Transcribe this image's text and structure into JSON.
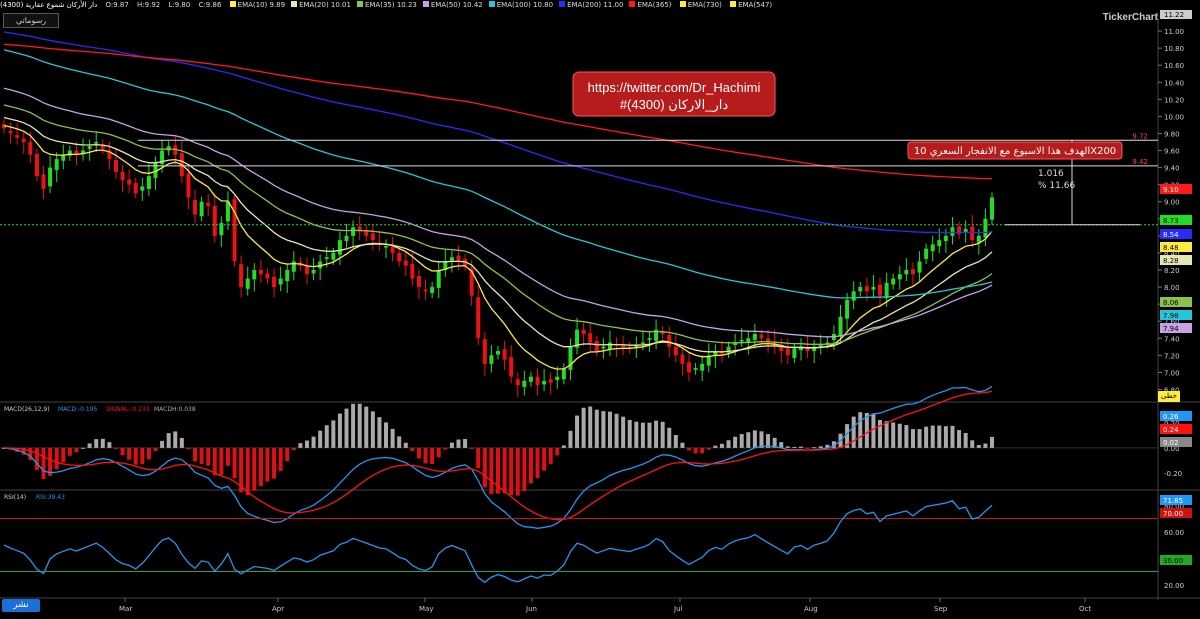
{
  "header": {
    "symbol_title": "دار الأركان  شموع  عقارية (4300)",
    "ohlc": [
      "O:9.87",
      "H:9.92",
      "L:9.80",
      "C:9.86"
    ],
    "ema_items": [
      {
        "label": "EMA(10)",
        "value": "9.89",
        "color": "#ffeb3b"
      },
      {
        "label": "EMA(20)",
        "value": "10.01",
        "color": "#e6e6b0"
      },
      {
        "label": "EMA(35)",
        "value": "10.23",
        "color": "#8bc34a"
      },
      {
        "label": "EMA(50)",
        "value": "10.42",
        "color": "#c9a0e8"
      },
      {
        "label": "EMA(100)",
        "value": "10.80",
        "color": "#26c6da"
      },
      {
        "label": "EMA(200)",
        "value": "11.00",
        "color": "#2a2aff"
      },
      {
        "label": "EMA(365)",
        "value": "",
        "color": "#ff1a1a"
      },
      {
        "label": "EMA(730)",
        "value": "",
        "color": "#ffeb3b"
      },
      {
        "label": "EMA(547)",
        "value": "",
        "color": "#ffeb3b"
      }
    ],
    "drawing_tools_label": "رسوماتي",
    "logo": "TickerChart",
    "top_price_badge": "11.22"
  },
  "annotations": {
    "link_line1": "https://twitter.com/Dr_Hachimi",
    "link_line2": "#دار_الاركان (4300)",
    "target_note": "الهدف هذا الاسبوع مع الانفجار السعري 10X200",
    "measure_value": "1.016",
    "measure_percent": "% 11.66"
  },
  "colors": {
    "up_candle": "#22dd22",
    "down_candle": "#ee1111",
    "macd_line": "#2196f3",
    "signal_line": "#ff1111",
    "hist_pos": "#aaaaaa",
    "hist_neg": "#dd1111",
    "rsi_line": "#2196f3",
    "overbought": "#cc1111",
    "oversold": "#22aa22",
    "link_box": "#b71c1c"
  },
  "buttons": {
    "publish": "نشر",
    "draw": "خطى"
  },
  "chart_data": [
    {
      "type": "candlestick",
      "title": "",
      "x_tick_labels": [
        "Mar",
        "Apr",
        "May",
        "Jun",
        "Jul",
        "Aug",
        "Sep",
        "Oct"
      ],
      "y_ticks": [
        "11.00",
        "10.80",
        "10.60",
        "10.40",
        "10.20",
        "10.00",
        "9.80",
        "9.60",
        "9.40",
        "9.20",
        "9.00",
        "8.80",
        "8.60",
        "8.40",
        "8.20",
        "8.00",
        "7.80",
        "7.60",
        "7.40",
        "7.20",
        "7.00",
        "6.80"
      ],
      "ylim": [
        6.7,
        11.2
      ],
      "closes": [
        9.86,
        9.8,
        9.75,
        9.7,
        9.55,
        9.3,
        9.15,
        9.4,
        9.5,
        9.55,
        9.6,
        9.55,
        9.6,
        9.65,
        9.7,
        9.62,
        9.5,
        9.35,
        9.25,
        9.2,
        9.1,
        9.18,
        9.3,
        9.45,
        9.6,
        9.65,
        9.55,
        9.3,
        9.05,
        8.85,
        9.0,
        8.95,
        8.6,
        8.75,
        9.0,
        8.3,
        8.0,
        8.1,
        8.2,
        8.15,
        8.1,
        8.0,
        8.1,
        8.2,
        8.3,
        8.25,
        8.15,
        8.2,
        8.3,
        8.35,
        8.4,
        8.55,
        8.6,
        8.7,
        8.65,
        8.6,
        8.55,
        8.5,
        8.48,
        8.4,
        8.3,
        8.25,
        8.1,
        8.0,
        7.95,
        8.0,
        8.2,
        8.3,
        8.35,
        8.3,
        8.25,
        7.9,
        7.4,
        7.1,
        7.2,
        7.25,
        7.15,
        6.95,
        6.85,
        6.9,
        6.95,
        6.85,
        6.9,
        6.88,
        6.95,
        7.05,
        7.3,
        7.5,
        7.45,
        7.35,
        7.25,
        7.3,
        7.35,
        7.32,
        7.3,
        7.28,
        7.32,
        7.35,
        7.4,
        7.5,
        7.45,
        7.3,
        7.2,
        7.1,
        7.0,
        7.05,
        7.1,
        7.2,
        7.25,
        7.22,
        7.3,
        7.35,
        7.38,
        7.4,
        7.45,
        7.4,
        7.35,
        7.3,
        7.25,
        7.2,
        7.28,
        7.3,
        7.25,
        7.3,
        7.32,
        7.35,
        7.45,
        7.65,
        7.85,
        7.95,
        8.0,
        7.95,
        8.0,
        7.9,
        8.05,
        8.1,
        8.15,
        8.2,
        8.15,
        8.3,
        8.45,
        8.5,
        8.55,
        8.6,
        8.7,
        8.62,
        8.68,
        8.55,
        8.6,
        8.8,
        9.05
      ],
      "current_price": "8.73",
      "horizontal_levels": [
        "9.72",
        "9.42"
      ],
      "ema_current_values": [
        {
          "value": "9.10",
          "color": "#ff1a1a"
        },
        {
          "value": "8.73",
          "color": "#22dd22"
        },
        {
          "value": "8.54",
          "color": "#2a2aff"
        },
        {
          "value": "8.48",
          "color": "#ffeb3b"
        },
        {
          "value": "8.28",
          "color": "#e6e6b0"
        },
        {
          "value": "8.06",
          "color": "#8bc34a"
        },
        {
          "value": "7.98",
          "color": "#26c6da"
        },
        {
          "value": "7.94",
          "color": "#c9a0e8"
        }
      ]
    },
    {
      "type": "line",
      "title": "MACD(26,12,9)",
      "legend": [
        "MACD:-0.195",
        "SIGNAL:-0.233",
        "MACDH:0.038"
      ],
      "y_ticks": [
        "0.20",
        "0.00",
        "-0.20"
      ],
      "ylim": [
        -0.32,
        0.35
      ],
      "current_values": [
        {
          "value": "0.26",
          "color": "#2196f3"
        },
        {
          "value": "0.24",
          "color": "#ff1111"
        },
        {
          "value": "0.02",
          "color": "#888888"
        }
      ]
    },
    {
      "type": "line",
      "title": "RSI(14)",
      "legend": [
        "RSI:39.43"
      ],
      "y_ticks": [
        "80.00",
        "60.00",
        "40.00",
        "20.00"
      ],
      "ylim": [
        10,
        90
      ],
      "levels": [
        70,
        30
      ],
      "current_values": [
        {
          "value": "71.85",
          "color": "#2196f3"
        },
        {
          "value": "70.00",
          "color": "#cc1111"
        },
        {
          "value": "30.00",
          "color": "#22aa22"
        }
      ]
    }
  ]
}
